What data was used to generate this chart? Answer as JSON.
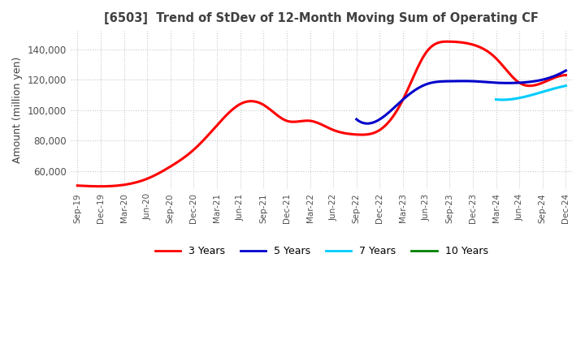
{
  "title": "[6503]  Trend of StDev of 12-Month Moving Sum of Operating CF",
  "ylabel": "Amount (million yen)",
  "background_color": "#ffffff",
  "plot_background": "#ffffff",
  "grid_color": "#c8c8c8",
  "title_color": "#404040",
  "x_ticks": [
    "Sep-19",
    "Dec-19",
    "Mar-20",
    "Jun-20",
    "Sep-20",
    "Dec-20",
    "Mar-21",
    "Jun-21",
    "Sep-21",
    "Dec-21",
    "Mar-22",
    "Jun-22",
    "Sep-22",
    "Dec-22",
    "Mar-23",
    "Jun-23",
    "Sep-23",
    "Dec-23",
    "Mar-24",
    "Jun-24",
    "Sep-24",
    "Dec-24"
  ],
  "ylim": [
    48000,
    152000
  ],
  "yticks": [
    60000,
    80000,
    100000,
    120000,
    140000
  ],
  "series": {
    "3 Years": {
      "color": "#ff0000",
      "values": [
        50500,
        50000,
        51000,
        55000,
        63000,
        74000,
        90000,
        104000,
        103500,
        93000,
        93000,
        87000,
        84000,
        87000,
        107000,
        138000,
        145000,
        143000,
        134000,
        118000,
        118000,
        123000
      ]
    },
    "5 Years": {
      "color": "#0000cc",
      "values": [
        null,
        null,
        null,
        null,
        null,
        null,
        null,
        null,
        null,
        null,
        null,
        null,
        94000,
        94000,
        107000,
        117000,
        119000,
        119000,
        118000,
        118000,
        120000,
        126000
      ]
    },
    "7 Years": {
      "color": "#00ccff",
      "values": [
        null,
        null,
        null,
        null,
        null,
        null,
        null,
        null,
        null,
        null,
        null,
        null,
        null,
        null,
        null,
        null,
        null,
        null,
        107000,
        108000,
        112000,
        116000
      ]
    },
    "10 Years": {
      "color": "#008000",
      "values": [
        null,
        null,
        null,
        null,
        null,
        null,
        null,
        null,
        null,
        null,
        null,
        null,
        null,
        null,
        null,
        null,
        null,
        null,
        null,
        null,
        null,
        null
      ]
    }
  }
}
